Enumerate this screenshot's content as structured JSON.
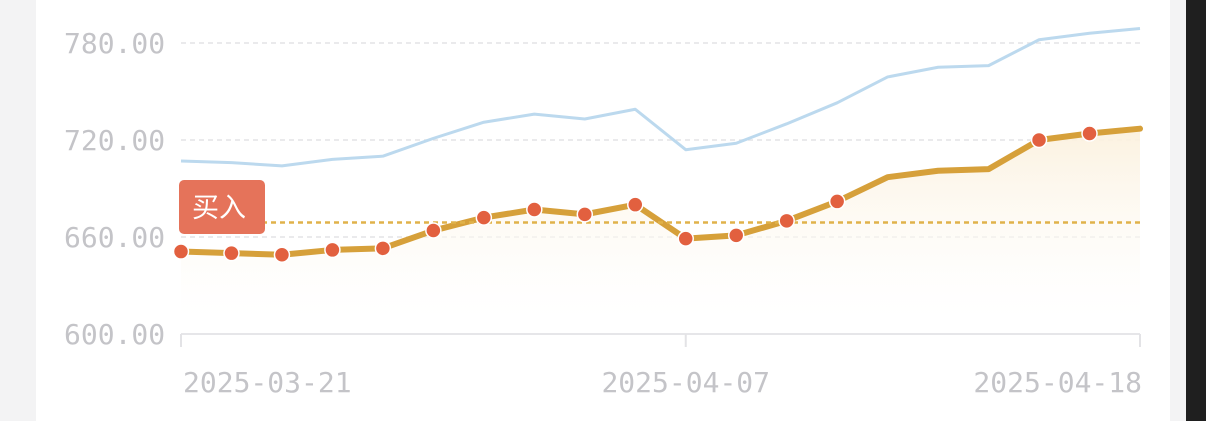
{
  "colors": {
    "background": "#f3f3f4",
    "card": "#ffffff",
    "grid": "#e3e3e6",
    "axis_text": "#c4c4c8",
    "benchmark_line": "#bcd9ee",
    "price_line": "#d6a03a",
    "price_fill_top": "#fbf1de",
    "marker": "#e2603f",
    "buy_badge": "#e5735a",
    "buy_ref_line": "#e0b24a"
  },
  "chart_data": {
    "type": "line",
    "ylim": [
      600,
      790
    ],
    "yticks": [
      600,
      660,
      720,
      780
    ],
    "ytick_labels": [
      "600.00",
      "660.00",
      "720.00",
      "780.00"
    ],
    "x_labels": [
      {
        "index": 0,
        "label": "2025-03-21"
      },
      {
        "index": 10,
        "label": "2025-04-07"
      },
      {
        "index": 19,
        "label": "2025-04-18"
      }
    ],
    "grid": true,
    "buy_reference_value": 669,
    "series": [
      {
        "values": [
          707,
          706,
          704,
          708,
          710,
          721,
          731,
          736,
          733,
          739,
          714,
          718,
          730,
          743,
          759,
          765,
          766,
          782,
          786,
          789
        ],
        "markers": false,
        "fill": false
      },
      {
        "values": [
          651,
          650,
          649,
          652,
          653,
          664,
          672,
          677,
          674,
          680,
          659,
          661,
          670,
          682,
          697,
          701,
          702,
          720,
          724,
          727
        ],
        "markers": [
          true,
          true,
          true,
          true,
          true,
          true,
          true,
          true,
          true,
          true,
          true,
          true,
          true,
          true,
          false,
          false,
          false,
          true,
          true,
          false
        ],
        "fill": true
      }
    ],
    "annotation": {
      "text": "买入",
      "index": 0
    }
  }
}
